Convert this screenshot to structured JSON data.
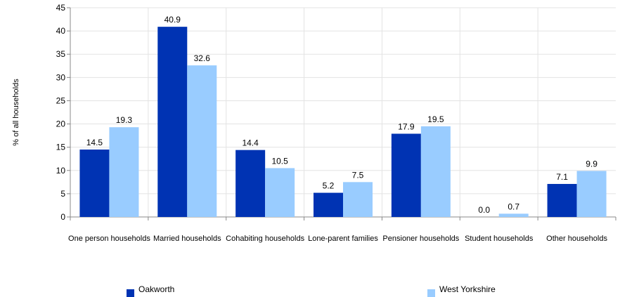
{
  "chart_data": {
    "type": "bar",
    "categories": [
      "One person households",
      "Married households",
      "Cohabiting households",
      "Lone-parent families",
      "Pensioner households",
      "Student households",
      "Other households"
    ],
    "series": [
      {
        "name": "Oakworth",
        "color": "#0033b3",
        "values": [
          14.5,
          40.9,
          14.4,
          5.2,
          17.9,
          0.0,
          7.1
        ]
      },
      {
        "name": "West Yorkshire",
        "color": "#99ccff",
        "values": [
          19.3,
          32.6,
          10.5,
          7.5,
          19.5,
          0.7,
          9.9
        ]
      }
    ],
    "data_labels": [
      [
        "14.5",
        "40.9",
        "14.4",
        "5.2",
        "17.9",
        "0.0",
        "7.1"
      ],
      [
        "19.3",
        "32.6",
        "10.5",
        "7.5",
        "19.5",
        "0.7",
        "9.9"
      ]
    ],
    "ylabel": "% of all households",
    "xlabel": "",
    "ylim": [
      0,
      45
    ],
    "yticks": [
      0,
      5,
      10,
      15,
      20,
      25,
      30,
      35,
      40,
      45
    ],
    "grid": true,
    "legend_position": "bottom"
  }
}
